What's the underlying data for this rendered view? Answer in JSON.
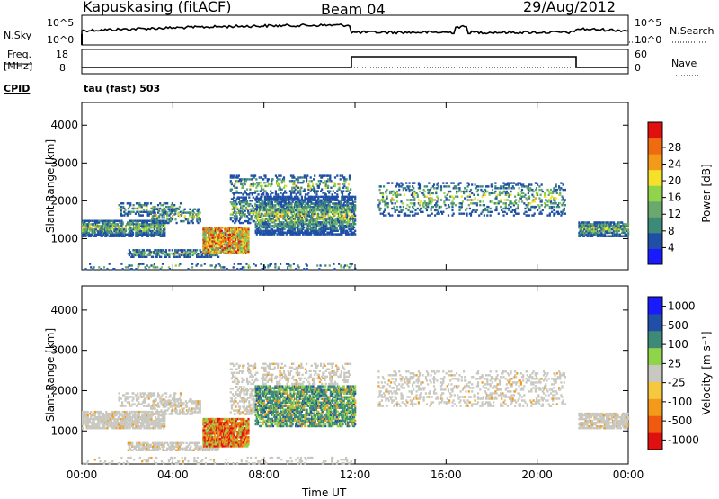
{
  "header": {
    "station": "Kapuskasing (fitACF)",
    "beam": "Beam 04",
    "date": "29/Aug/2012"
  },
  "top_panels": {
    "nsky_label": "N.Sky",
    "nsky_ticks": [
      "10^5",
      "10^0"
    ],
    "nsearch_label": "N.Search",
    "freq_label": "Freq.",
    "freq_unit": "[MHz]",
    "freq_ticks": [
      "18",
      "8"
    ],
    "nave_label": "Nave",
    "nave_ticks": [
      "60",
      "0"
    ],
    "cpid_label": "CPID",
    "cpid_text": "tau (fast) 503"
  },
  "colors": {
    "power_bar": [
      "#1a1aff",
      "#1f4fa6",
      "#3e8a78",
      "#6aa86e",
      "#8fd44a",
      "#f5e02a",
      "#f39a1a",
      "#f06a10",
      "#e01010"
    ],
    "velocity_bar": [
      "#e01010",
      "#f05a10",
      "#f39a1a",
      "#f5c840",
      "#c8c8c0",
      "#8fd44a",
      "#3e8a78",
      "#1f4fa6",
      "#1a1aff"
    ]
  },
  "chart_data": [
    {
      "type": "heatmap",
      "title": "Power",
      "xlabel": "Time UT",
      "ylabel": "Slant Range [km]",
      "x_ticks": [
        "00:00",
        "04:00",
        "08:00",
        "12:00",
        "16:00",
        "20:00",
        "00:00"
      ],
      "y_ticks": [
        "1000",
        "2000",
        "3000",
        "4000"
      ],
      "xlim_hours": [
        0,
        24
      ],
      "ylim_km": [
        180,
        4600
      ],
      "colorbar": {
        "label": "Power [dB]",
        "ticks": [
          "4",
          "8",
          "12",
          "16",
          "20",
          "24",
          "28"
        ],
        "range": [
          0,
          30
        ]
      }
    },
    {
      "type": "heatmap",
      "title": "Velocity",
      "xlabel": "Time UT",
      "ylabel": "Slant Range [km]",
      "x_ticks": [
        "00:00",
        "04:00",
        "08:00",
        "12:00",
        "16:00",
        "20:00",
        "00:00"
      ],
      "y_ticks": [
        "1000",
        "2000",
        "3000",
        "4000"
      ],
      "xlim_hours": [
        0,
        24
      ],
      "ylim_km": [
        180,
        4600
      ],
      "colorbar": {
        "label": "Velocity [m s⁻¹]",
        "ticks": [
          "1000",
          "500",
          "100",
          "25",
          "-25",
          "-100",
          "-500",
          "-1000"
        ],
        "range": [
          -1250,
          1250
        ]
      }
    }
  ],
  "axis_title": "Time UT"
}
